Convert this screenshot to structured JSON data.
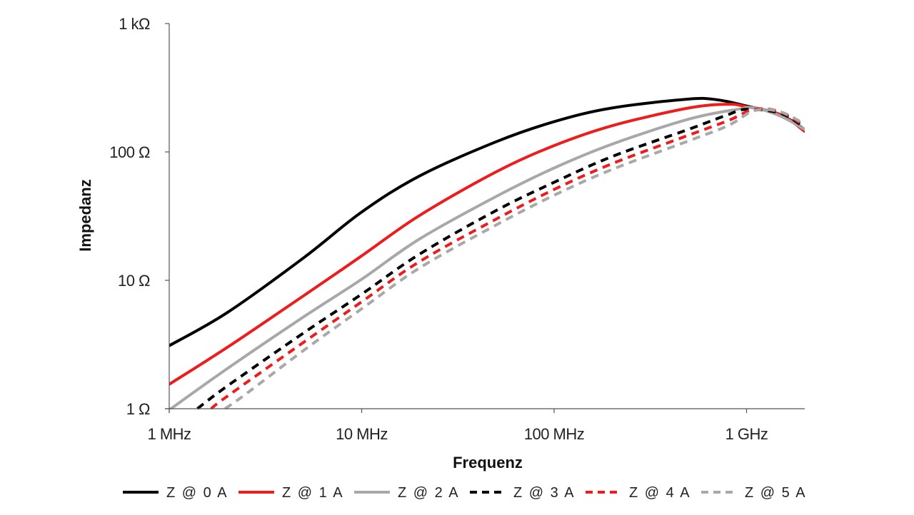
{
  "chart_data": {
    "type": "line",
    "xlabel": "Frequenz",
    "ylabel": "Impedanz",
    "x_scale": "log",
    "y_scale": "log",
    "xlim_hz": [
      1000000,
      2000000000
    ],
    "ylim_ohm": [
      1,
      1000
    ],
    "x_ticks": [
      {
        "value": 1000000,
        "label": "1 MHz"
      },
      {
        "value": 10000000,
        "label": "10 MHz"
      },
      {
        "value": 100000000,
        "label": "100 MHz"
      },
      {
        "value": 1000000000,
        "label": "1 GHz"
      }
    ],
    "y_ticks": [
      {
        "value": 1,
        "label": "1 Ω"
      },
      {
        "value": 10,
        "label": "10 Ω"
      },
      {
        "value": 100,
        "label": "100 Ω"
      },
      {
        "value": 1000,
        "label": "1 kΩ"
      }
    ],
    "grid": false,
    "legend_position": "bottom",
    "series": [
      {
        "name": "Z @ 0 A",
        "color": "#000000",
        "dash": "solid",
        "points": [
          [
            1000000,
            3.1
          ],
          [
            2000000,
            5.6
          ],
          [
            5000000,
            15
          ],
          [
            10000000,
            34
          ],
          [
            20000000,
            65
          ],
          [
            50000000,
            120
          ],
          [
            100000000,
            172
          ],
          [
            200000000,
            220
          ],
          [
            500000000,
            258
          ],
          [
            700000000,
            255
          ],
          [
            1000000000,
            228
          ],
          [
            1500000000,
            195
          ],
          [
            2000000000,
            150
          ]
        ]
      },
      {
        "name": "Z @ 1 A",
        "color": "#ee1c1c",
        "dash": "solid",
        "points": [
          [
            1000000,
            1.55
          ],
          [
            2000000,
            3
          ],
          [
            5000000,
            7.6
          ],
          [
            10000000,
            15.5
          ],
          [
            20000000,
            32
          ],
          [
            50000000,
            70
          ],
          [
            100000000,
            112
          ],
          [
            200000000,
            160
          ],
          [
            500000000,
            220
          ],
          [
            800000000,
            235
          ],
          [
            1000000000,
            225
          ],
          [
            1500000000,
            195
          ],
          [
            2000000000,
            145
          ]
        ]
      },
      {
        "name": "Z @ 2 A",
        "color": "#a8a8a8",
        "dash": "solid",
        "points": [
          [
            1020000,
            1
          ],
          [
            2000000,
            2.05
          ],
          [
            5000000,
            5.2
          ],
          [
            10000000,
            10.2
          ],
          [
            20000000,
            21
          ],
          [
            50000000,
            45
          ],
          [
            100000000,
            75
          ],
          [
            200000000,
            115
          ],
          [
            500000000,
            180
          ],
          [
            900000000,
            215
          ],
          [
            1100000000,
            220
          ],
          [
            1500000000,
            190
          ],
          [
            2000000000,
            150
          ]
        ]
      },
      {
        "name": "Z @ 3 A",
        "color": "#000000",
        "dash": "dashed",
        "points": [
          [
            1400000,
            1
          ],
          [
            2000000,
            1.5
          ],
          [
            5000000,
            3.9
          ],
          [
            10000000,
            7.8
          ],
          [
            20000000,
            16
          ],
          [
            50000000,
            35
          ],
          [
            100000000,
            58
          ],
          [
            200000000,
            92
          ],
          [
            500000000,
            150
          ],
          [
            800000000,
            195
          ],
          [
            1000000000,
            215
          ],
          [
            1500000000,
            200
          ],
          [
            2000000000,
            155
          ]
        ]
      },
      {
        "name": "Z @ 4 A",
        "color": "#ee1c1c",
        "dash": "dashed",
        "points": [
          [
            1650000,
            1
          ],
          [
            2000000,
            1.25
          ],
          [
            5000000,
            3.3
          ],
          [
            10000000,
            6.8
          ],
          [
            20000000,
            14
          ],
          [
            50000000,
            30
          ],
          [
            100000000,
            51
          ],
          [
            200000000,
            81
          ],
          [
            500000000,
            135
          ],
          [
            800000000,
            175
          ],
          [
            1100000000,
            215
          ],
          [
            1500000000,
            205
          ],
          [
            2000000000,
            160
          ]
        ]
      },
      {
        "name": "Z @ 5 A",
        "color": "#a8a8a8",
        "dash": "dashed",
        "points": [
          [
            1950000,
            1
          ],
          [
            2500000,
            1.3
          ],
          [
            5000000,
            2.85
          ],
          [
            10000000,
            6
          ],
          [
            20000000,
            12.5
          ],
          [
            50000000,
            27
          ],
          [
            100000000,
            46
          ],
          [
            200000000,
            73
          ],
          [
            500000000,
            122
          ],
          [
            800000000,
            160
          ],
          [
            1100000000,
            210
          ],
          [
            1500000000,
            205
          ],
          [
            2000000000,
            165
          ]
        ]
      }
    ]
  }
}
